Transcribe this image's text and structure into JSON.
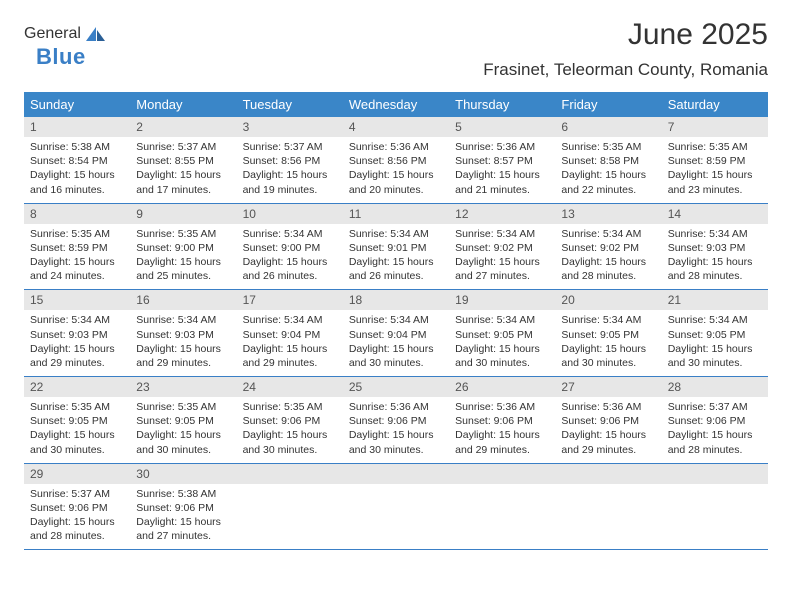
{
  "logo": {
    "part1": "General",
    "part2": "Blue"
  },
  "title": "June 2025",
  "location": "Frasinet, Teleorman County, Romania",
  "colors": {
    "header_bg": "#3a86c8",
    "header_text": "#ffffff",
    "daynum_bg": "#e7e7e7",
    "divider": "#3a7fc6",
    "logo_gray": "#6a6a6a",
    "logo_blue": "#3a7fc6",
    "body_text": "#333333"
  },
  "day_names": [
    "Sunday",
    "Monday",
    "Tuesday",
    "Wednesday",
    "Thursday",
    "Friday",
    "Saturday"
  ],
  "weeks": [
    [
      {
        "n": "1",
        "sr": "5:38 AM",
        "ss": "8:54 PM",
        "dl": "15 hours and 16 minutes."
      },
      {
        "n": "2",
        "sr": "5:37 AM",
        "ss": "8:55 PM",
        "dl": "15 hours and 17 minutes."
      },
      {
        "n": "3",
        "sr": "5:37 AM",
        "ss": "8:56 PM",
        "dl": "15 hours and 19 minutes."
      },
      {
        "n": "4",
        "sr": "5:36 AM",
        "ss": "8:56 PM",
        "dl": "15 hours and 20 minutes."
      },
      {
        "n": "5",
        "sr": "5:36 AM",
        "ss": "8:57 PM",
        "dl": "15 hours and 21 minutes."
      },
      {
        "n": "6",
        "sr": "5:35 AM",
        "ss": "8:58 PM",
        "dl": "15 hours and 22 minutes."
      },
      {
        "n": "7",
        "sr": "5:35 AM",
        "ss": "8:59 PM",
        "dl": "15 hours and 23 minutes."
      }
    ],
    [
      {
        "n": "8",
        "sr": "5:35 AM",
        "ss": "8:59 PM",
        "dl": "15 hours and 24 minutes."
      },
      {
        "n": "9",
        "sr": "5:35 AM",
        "ss": "9:00 PM",
        "dl": "15 hours and 25 minutes."
      },
      {
        "n": "10",
        "sr": "5:34 AM",
        "ss": "9:00 PM",
        "dl": "15 hours and 26 minutes."
      },
      {
        "n": "11",
        "sr": "5:34 AM",
        "ss": "9:01 PM",
        "dl": "15 hours and 26 minutes."
      },
      {
        "n": "12",
        "sr": "5:34 AM",
        "ss": "9:02 PM",
        "dl": "15 hours and 27 minutes."
      },
      {
        "n": "13",
        "sr": "5:34 AM",
        "ss": "9:02 PM",
        "dl": "15 hours and 28 minutes."
      },
      {
        "n": "14",
        "sr": "5:34 AM",
        "ss": "9:03 PM",
        "dl": "15 hours and 28 minutes."
      }
    ],
    [
      {
        "n": "15",
        "sr": "5:34 AM",
        "ss": "9:03 PM",
        "dl": "15 hours and 29 minutes."
      },
      {
        "n": "16",
        "sr": "5:34 AM",
        "ss": "9:03 PM",
        "dl": "15 hours and 29 minutes."
      },
      {
        "n": "17",
        "sr": "5:34 AM",
        "ss": "9:04 PM",
        "dl": "15 hours and 29 minutes."
      },
      {
        "n": "18",
        "sr": "5:34 AM",
        "ss": "9:04 PM",
        "dl": "15 hours and 30 minutes."
      },
      {
        "n": "19",
        "sr": "5:34 AM",
        "ss": "9:05 PM",
        "dl": "15 hours and 30 minutes."
      },
      {
        "n": "20",
        "sr": "5:34 AM",
        "ss": "9:05 PM",
        "dl": "15 hours and 30 minutes."
      },
      {
        "n": "21",
        "sr": "5:34 AM",
        "ss": "9:05 PM",
        "dl": "15 hours and 30 minutes."
      }
    ],
    [
      {
        "n": "22",
        "sr": "5:35 AM",
        "ss": "9:05 PM",
        "dl": "15 hours and 30 minutes."
      },
      {
        "n": "23",
        "sr": "5:35 AM",
        "ss": "9:05 PM",
        "dl": "15 hours and 30 minutes."
      },
      {
        "n": "24",
        "sr": "5:35 AM",
        "ss": "9:06 PM",
        "dl": "15 hours and 30 minutes."
      },
      {
        "n": "25",
        "sr": "5:36 AM",
        "ss": "9:06 PM",
        "dl": "15 hours and 30 minutes."
      },
      {
        "n": "26",
        "sr": "5:36 AM",
        "ss": "9:06 PM",
        "dl": "15 hours and 29 minutes."
      },
      {
        "n": "27",
        "sr": "5:36 AM",
        "ss": "9:06 PM",
        "dl": "15 hours and 29 minutes."
      },
      {
        "n": "28",
        "sr": "5:37 AM",
        "ss": "9:06 PM",
        "dl": "15 hours and 28 minutes."
      }
    ],
    [
      {
        "n": "29",
        "sr": "5:37 AM",
        "ss": "9:06 PM",
        "dl": "15 hours and 28 minutes."
      },
      {
        "n": "30",
        "sr": "5:38 AM",
        "ss": "9:06 PM",
        "dl": "15 hours and 27 minutes."
      },
      null,
      null,
      null,
      null,
      null
    ]
  ],
  "labels": {
    "sunrise": "Sunrise: ",
    "sunset": "Sunset: ",
    "daylight": "Daylight: "
  }
}
